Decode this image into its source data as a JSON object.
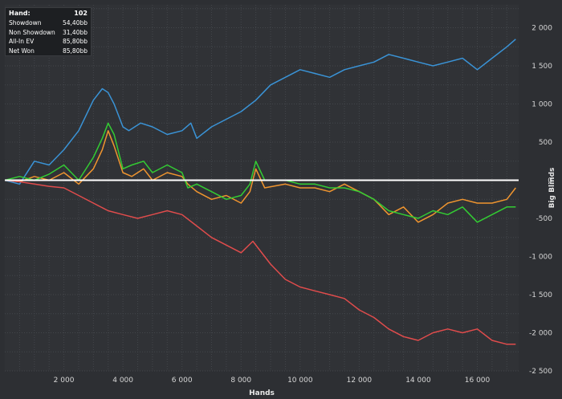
{
  "summary": {
    "rows": [
      {
        "label": "Hand:",
        "value": "102"
      },
      {
        "label": "Showdown",
        "value": "54,40bb"
      },
      {
        "label": "Non Showdown",
        "value": "31,40bb"
      },
      {
        "label": "All-In EV",
        "value": "85,80bb"
      },
      {
        "label": "Net Won",
        "value": "85,80bb"
      }
    ]
  },
  "chart_data": {
    "type": "line",
    "title": "",
    "xlabel": "Hands",
    "ylabel": "Big Blinds",
    "xlim": [
      0,
      17400
    ],
    "ylim": [
      -2500,
      2300
    ],
    "x_ticks": [
      2000,
      4000,
      6000,
      8000,
      10000,
      12000,
      14000,
      16000
    ],
    "x_tick_labels": [
      "2 000",
      "4 000",
      "6 000",
      "8 000",
      "10 000",
      "12 000",
      "14 000",
      "16 000"
    ],
    "y_ticks": [
      2000,
      1500,
      1000,
      500,
      0,
      -500,
      -1000,
      -1500,
      -2000,
      -2500
    ],
    "y_tick_labels": [
      "2 000",
      "1 500",
      "1 000",
      "500",
      "0",
      "-500",
      "-1 000",
      "-1 500",
      "-2 000",
      "-2 500"
    ],
    "grid": true,
    "legend": "none",
    "series": [
      {
        "color": "#3a93d6",
        "x": [
          0,
          500,
          1000,
          1500,
          2000,
          2500,
          3000,
          3300,
          3500,
          3700,
          4000,
          4200,
          4600,
          5000,
          5500,
          6000,
          6300,
          6500,
          7000,
          7500,
          8000,
          8500,
          9000,
          9500,
          10000,
          10500,
          11000,
          11500,
          12000,
          12500,
          13000,
          13500,
          14000,
          14500,
          15000,
          15500,
          16000,
          16500,
          17000,
          17300
        ],
        "values": [
          0,
          -50,
          250,
          200,
          400,
          650,
          1050,
          1200,
          1150,
          1000,
          700,
          650,
          750,
          700,
          600,
          650,
          750,
          550,
          700,
          800,
          900,
          1050,
          1250,
          1350,
          1450,
          1400,
          1350,
          1450,
          1500,
          1550,
          1650,
          1600,
          1550,
          1500,
          1550,
          1600,
          1450,
          1600,
          1750,
          1850
        ]
      },
      {
        "color": "#f0952f",
        "x": [
          0,
          500,
          1000,
          1500,
          2000,
          2500,
          3000,
          3300,
          3500,
          3700,
          4000,
          4300,
          4700,
          5000,
          5500,
          6000,
          6200,
          6500,
          7000,
          7500,
          8000,
          8300,
          8500,
          8800,
          9500,
          10000,
          10500,
          11000,
          11500,
          12000,
          12500,
          13000,
          13500,
          14000,
          14500,
          15000,
          15500,
          16000,
          16500,
          17000,
          17300
        ],
        "values": [
          0,
          -20,
          50,
          0,
          100,
          -50,
          150,
          400,
          650,
          450,
          100,
          50,
          150,
          0,
          100,
          50,
          -50,
          -150,
          -250,
          -200,
          -300,
          -150,
          150,
          -100,
          -50,
          -100,
          -100,
          -150,
          -50,
          -150,
          -250,
          -450,
          -350,
          -550,
          -450,
          -300,
          -250,
          -300,
          -300,
          -250,
          -100
        ]
      },
      {
        "color": "#33cc33",
        "x": [
          0,
          500,
          1000,
          1500,
          2000,
          2500,
          3000,
          3300,
          3500,
          3700,
          4000,
          4300,
          4700,
          5000,
          5500,
          6000,
          6200,
          6500,
          7000,
          7500,
          8000,
          8300,
          8500,
          8800,
          9500,
          10000,
          10500,
          11000,
          11500,
          12000,
          12500,
          13000,
          13500,
          14000,
          14500,
          15000,
          15500,
          16000,
          16500,
          17000,
          17300
        ],
        "values": [
          0,
          50,
          0,
          80,
          200,
          0,
          300,
          550,
          750,
          600,
          150,
          200,
          250,
          100,
          200,
          100,
          -100,
          -50,
          -150,
          -250,
          -200,
          -50,
          250,
          0,
          0,
          -50,
          -50,
          -100,
          -100,
          -150,
          -250,
          -400,
          -450,
          -500,
          -400,
          -450,
          -350,
          -550,
          -450,
          -350,
          -350
        ]
      },
      {
        "color": "#e04c4c",
        "x": [
          0,
          500,
          1000,
          1500,
          2000,
          2500,
          3000,
          3500,
          4000,
          4500,
          5000,
          5500,
          6000,
          6500,
          7000,
          7500,
          8000,
          8400,
          8600,
          9000,
          9500,
          10000,
          10500,
          11000,
          11500,
          12000,
          12500,
          13000,
          13500,
          14000,
          14500,
          15000,
          15500,
          16000,
          16500,
          17000,
          17300
        ],
        "values": [
          0,
          -20,
          -50,
          -80,
          -100,
          -200,
          -300,
          -400,
          -450,
          -500,
          -450,
          -400,
          -450,
          -600,
          -750,
          -850,
          -950,
          -800,
          -900,
          -1100,
          -1300,
          -1400,
          -1450,
          -1500,
          -1550,
          -1700,
          -1800,
          -1950,
          -2050,
          -2100,
          -2000,
          -1950,
          -2000,
          -1950,
          -2100,
          -2150,
          -2150
        ]
      },
      {
        "color": "#ffffff",
        "x": [
          0,
          17400
        ],
        "values": [
          0,
          0
        ]
      }
    ]
  }
}
